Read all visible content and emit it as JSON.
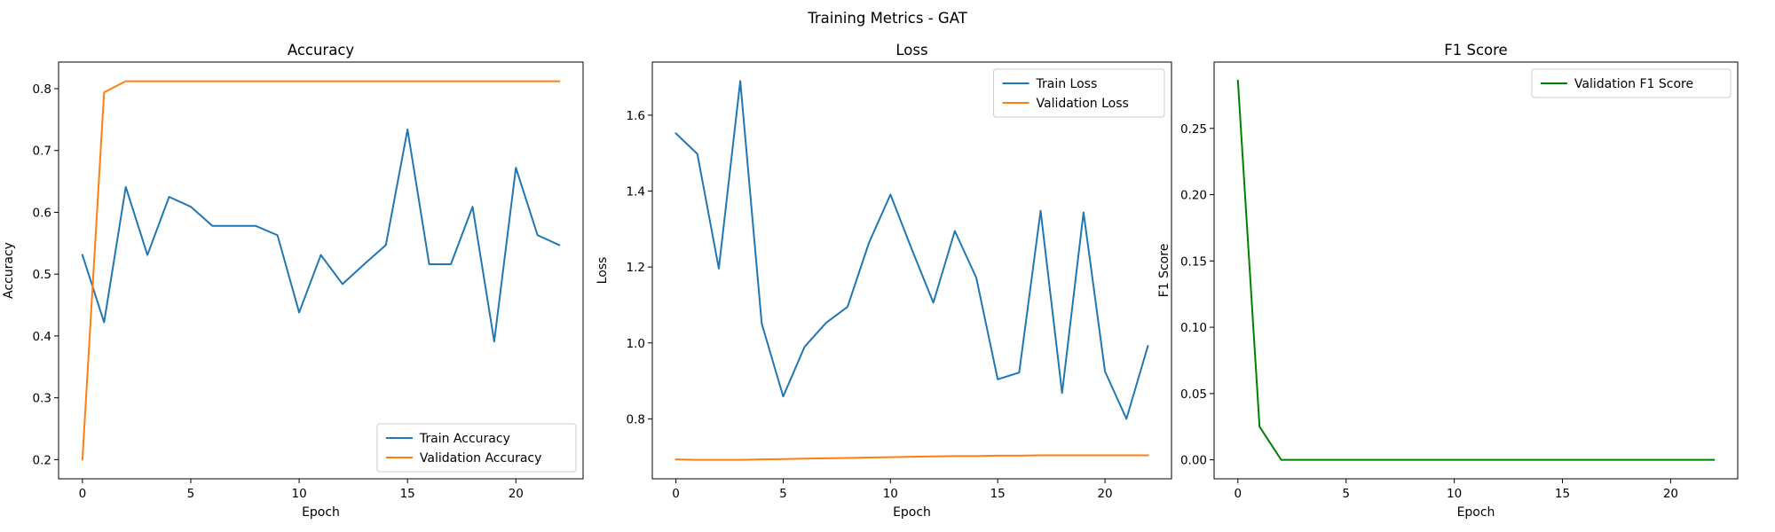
{
  "figure": {
    "suptitle": "Training Metrics - GAT"
  },
  "chart_data": [
    {
      "type": "line",
      "title": "Accuracy",
      "xlabel": "Epoch",
      "ylabel": "Accuracy",
      "xlim": [
        -1.1,
        23.1
      ],
      "ylim": [
        0.169,
        0.843
      ],
      "xticks": [
        0,
        5,
        10,
        15,
        20
      ],
      "yticks": [
        0.2,
        0.3,
        0.4,
        0.5,
        0.6,
        0.7,
        0.8
      ],
      "legend_position": "lower-right",
      "series": [
        {
          "name": "Train Accuracy",
          "color": "#1f77b4",
          "x": [
            0,
            1,
            2,
            3,
            4,
            5,
            6,
            7,
            8,
            9,
            10,
            11,
            12,
            13,
            14,
            15,
            16,
            17,
            18,
            19,
            20,
            21,
            22
          ],
          "y": [
            0.531,
            0.422,
            0.641,
            0.531,
            0.625,
            0.609,
            0.578,
            0.578,
            0.578,
            0.563,
            0.438,
            0.531,
            0.484,
            0.516,
            0.547,
            0.734,
            0.516,
            0.516,
            0.609,
            0.391,
            0.672,
            0.563,
            0.547
          ]
        },
        {
          "name": "Validation Accuracy",
          "color": "#ff7f0e",
          "x": [
            0,
            1,
            2,
            3,
            4,
            5,
            6,
            7,
            8,
            9,
            10,
            11,
            12,
            13,
            14,
            15,
            16,
            17,
            18,
            19,
            20,
            21,
            22
          ],
          "y": [
            0.2,
            0.794,
            0.812,
            0.812,
            0.812,
            0.812,
            0.812,
            0.812,
            0.812,
            0.812,
            0.812,
            0.812,
            0.812,
            0.812,
            0.812,
            0.812,
            0.812,
            0.812,
            0.812,
            0.812,
            0.812,
            0.812,
            0.812
          ]
        }
      ]
    },
    {
      "type": "line",
      "title": "Loss",
      "xlabel": "Epoch",
      "ylabel": "Loss",
      "xlim": [
        -1.1,
        23.1
      ],
      "ylim": [
        0.642,
        1.74
      ],
      "xticks": [
        0,
        5,
        10,
        15,
        20
      ],
      "yticks": [
        0.8,
        1.0,
        1.2,
        1.4,
        1.6
      ],
      "legend_position": "upper-right",
      "series": [
        {
          "name": "Train Loss",
          "color": "#1f77b4",
          "x": [
            0,
            1,
            2,
            3,
            4,
            5,
            6,
            7,
            8,
            9,
            10,
            11,
            12,
            13,
            14,
            15,
            16,
            17,
            18,
            19,
            20,
            21,
            22
          ],
          "y": [
            1.552,
            1.498,
            1.196,
            1.69,
            1.051,
            0.859,
            0.99,
            1.053,
            1.095,
            1.264,
            1.391,
            1.246,
            1.106,
            1.295,
            1.172,
            0.904,
            0.922,
            1.348,
            0.868,
            1.344,
            0.925,
            0.8,
            0.992
          ]
        },
        {
          "name": "Validation Loss",
          "color": "#ff7f0e",
          "x": [
            0,
            1,
            2,
            3,
            4,
            5,
            6,
            7,
            8,
            9,
            10,
            11,
            12,
            13,
            14,
            15,
            16,
            17,
            18,
            19,
            20,
            21,
            22
          ],
          "y": [
            0.693,
            0.692,
            0.692,
            0.692,
            0.693,
            0.694,
            0.695,
            0.696,
            0.697,
            0.698,
            0.699,
            0.7,
            0.701,
            0.702,
            0.702,
            0.703,
            0.703,
            0.704,
            0.704,
            0.704,
            0.704,
            0.704,
            0.704
          ]
        }
      ]
    },
    {
      "type": "line",
      "title": "F1 Score",
      "xlabel": "Epoch",
      "ylabel": "F1 Score",
      "xlim": [
        -1.1,
        23.1
      ],
      "ylim": [
        -0.0143,
        0.3
      ],
      "xticks": [
        0,
        5,
        10,
        15,
        20
      ],
      "yticks": [
        0.0,
        0.05,
        0.1,
        0.15,
        0.2,
        0.25
      ],
      "legend_position": "upper-right",
      "series": [
        {
          "name": "Validation F1 Score",
          "color": "#008000",
          "x": [
            0,
            1,
            2,
            3,
            4,
            5,
            6,
            7,
            8,
            9,
            10,
            11,
            12,
            13,
            14,
            15,
            16,
            17,
            18,
            19,
            20,
            21,
            22
          ],
          "y": [
            0.286,
            0.025,
            0,
            0,
            0,
            0,
            0,
            0,
            0,
            0,
            0,
            0,
            0,
            0,
            0,
            0,
            0,
            0,
            0,
            0,
            0,
            0,
            0
          ]
        }
      ]
    }
  ]
}
